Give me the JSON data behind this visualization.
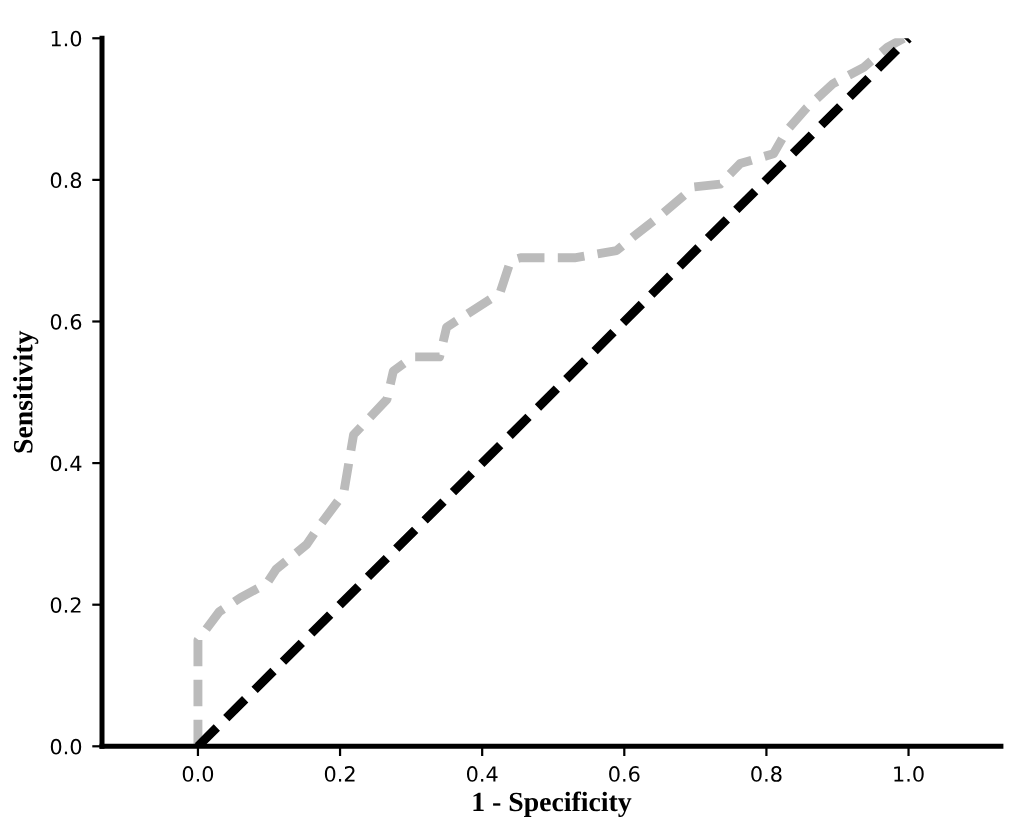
{
  "chart_data": {
    "type": "line",
    "xlabel": "1 - Specificity",
    "ylabel": "Sensitivity",
    "xlim": [
      -0.135,
      1.13
    ],
    "ylim": [
      0,
      1
    ],
    "xticks": [
      {
        "value": 0,
        "label": "0.0"
      },
      {
        "value": 0.2,
        "label": "0.2"
      },
      {
        "value": 0.4,
        "label": "0.4"
      },
      {
        "value": 0.6,
        "label": "0.6"
      },
      {
        "value": 0.8,
        "label": "0.8"
      },
      {
        "value": 1,
        "label": "1.0"
      }
    ],
    "yticks": [
      {
        "value": 0,
        "label": "0.0"
      },
      {
        "value": 0.2,
        "label": "0.2"
      },
      {
        "value": 0.4,
        "label": "0.4"
      },
      {
        "value": 0.6,
        "label": "0.6"
      },
      {
        "value": 0.8,
        "label": "0.8"
      },
      {
        "value": 1,
        "label": "1.0"
      }
    ],
    "grid": false,
    "line_style": "dashed",
    "series": [
      {
        "color": "#bbbbbb",
        "x": [
          0,
          0,
          0.03,
          0.06,
          0.097,
          0.11,
          0.153,
          0.17,
          0.205,
          0.219,
          0.266,
          0.275,
          0.303,
          0.34,
          0.35,
          0.378,
          0.425,
          0.44,
          0.454,
          0.53,
          0.589,
          0.613,
          0.65,
          0.698,
          0.735,
          0.763,
          0.81,
          0.829,
          0.857,
          0.894,
          0.937,
          0.97,
          0.993,
          1.0
        ],
        "values": [
          0,
          0.15,
          0.19,
          0.21,
          0.23,
          0.25,
          0.285,
          0.31,
          0.357,
          0.44,
          0.49,
          0.53,
          0.55,
          0.55,
          0.592,
          0.61,
          0.64,
          0.686,
          0.69,
          0.69,
          0.7,
          0.72,
          0.749,
          0.79,
          0.794,
          0.823,
          0.837,
          0.87,
          0.902,
          0.936,
          0.959,
          0.987,
          1.0,
          1.0
        ]
      },
      {
        "color": "#000000",
        "x": [
          0,
          1
        ],
        "values": [
          0,
          1
        ]
      }
    ]
  }
}
